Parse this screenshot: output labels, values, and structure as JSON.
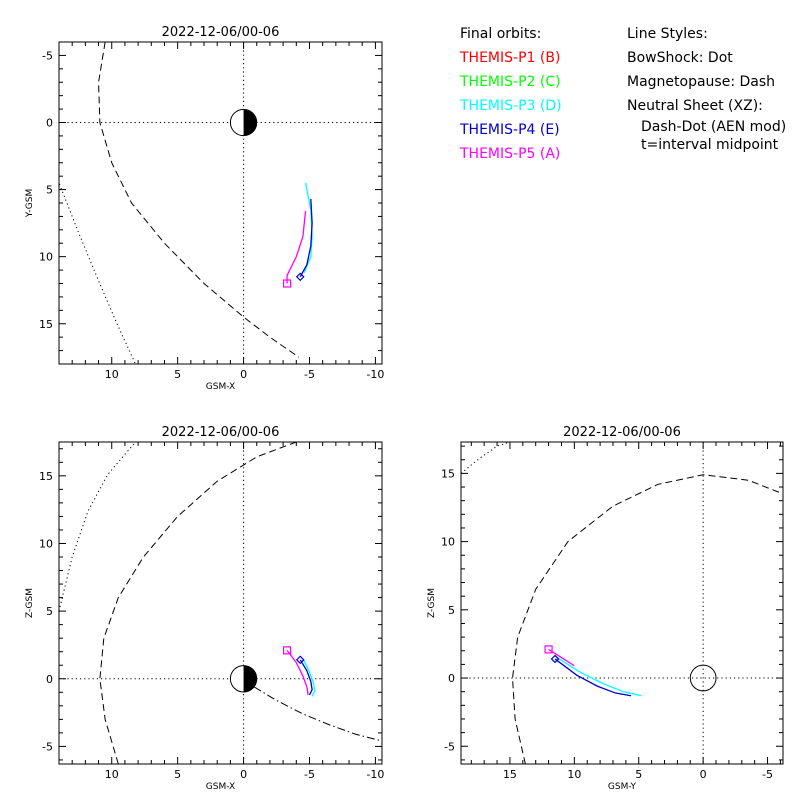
{
  "chart_data": [
    {
      "type": "line",
      "title": "2022-12-06/00-06",
      "xlabel": "GSM-X",
      "ylabel": "Y-GSM",
      "xlim": [
        14,
        -10.5
      ],
      "ylim": [
        18,
        -6
      ],
      "xticks": [
        10,
        5,
        0,
        -5,
        -10
      ],
      "xtick_labels": [
        "10",
        "5",
        "0",
        "-5",
        "-10"
      ],
      "yticks": [
        -5,
        0,
        5,
        10,
        15
      ],
      "ytick_labels": [
        "-5",
        "0",
        "5",
        "10",
        "15"
      ],
      "origin_lines": "dotted",
      "earth": "day-night",
      "boundaries": [
        {
          "style": "dot",
          "x": [
            14.2,
            12.6,
            11.0,
            9.6,
            8.2
          ],
          "y": [
            4.0,
            8.0,
            11.8,
            15.0,
            18.0
          ]
        },
        {
          "style": "dash",
          "x": [
            10.5,
            11.0,
            10.9,
            10.0,
            8.5,
            6.0,
            3.0,
            0.0,
            -2.0,
            -4.2
          ],
          "y": [
            -6.0,
            -3.0,
            0.0,
            3.0,
            6.0,
            9.0,
            12.0,
            14.5,
            16.0,
            17.5
          ]
        }
      ],
      "series": [
        {
          "name": "THEMIS-P3 (D)",
          "color": "#00ffff",
          "x": [
            -4.7,
            -5.1,
            -5.2,
            -5.1,
            -4.6
          ],
          "y": [
            4.5,
            6.5,
            8.5,
            10.0,
            11.2
          ]
        },
        {
          "name": "THEMIS-P4 (E)",
          "color": "#0000cc",
          "x": [
            -5.1,
            -5.2,
            -5.1,
            -4.8,
            -4.3
          ],
          "y": [
            5.7,
            7.5,
            9.2,
            10.6,
            11.5
          ]
        },
        {
          "name": "THEMIS-P5 (A)",
          "color": "#ff00ff",
          "x": [
            -4.7,
            -4.5,
            -4.0,
            -3.3,
            -3.3
          ],
          "y": [
            6.6,
            8.5,
            10.0,
            11.4,
            12.0
          ]
        }
      ],
      "markers": [
        {
          "color": "#ff00ff",
          "shape": "square",
          "x": -3.3,
          "y": 12.0
        },
        {
          "color": "#0000cc",
          "shape": "diamond",
          "x": -4.3,
          "y": 11.5
        }
      ]
    },
    {
      "type": "line",
      "title": "2022-12-06/00-06",
      "xlabel": "GSM-X",
      "ylabel": "Z-GSM",
      "xlim": [
        14,
        -10.5
      ],
      "ylim": [
        -6.3,
        17.5
      ],
      "xticks": [
        10,
        5,
        0,
        -5,
        -10
      ],
      "xtick_labels": [
        "10",
        "5",
        "0",
        "-5",
        "-10"
      ],
      "yticks": [
        -5,
        0,
        5,
        10,
        15
      ],
      "ytick_labels": [
        "-5",
        "0",
        "5",
        "10",
        "15"
      ],
      "origin_lines": "dotted",
      "earth": "day-night",
      "boundaries": [
        {
          "style": "dot",
          "x": [
            14.0,
            13.0,
            11.8,
            10.3,
            8.2
          ],
          "y": [
            5.0,
            9.0,
            12.4,
            15.1,
            17.5
          ]
        },
        {
          "style": "dash",
          "x": [
            9.5,
            10.5,
            10.9,
            10.6,
            9.5,
            7.6,
            5.0,
            2.0,
            -1.0,
            -4.0
          ],
          "y": [
            -6.3,
            -3.0,
            0.0,
            3.0,
            6.0,
            9.0,
            12.0,
            14.6,
            16.4,
            17.5
          ]
        },
        {
          "style": "dashdot",
          "x": [
            -0.8,
            -2.5,
            -4.5,
            -6.5,
            -8.5,
            -10.5
          ],
          "y": [
            -0.6,
            -1.6,
            -2.6,
            -3.4,
            -4.1,
            -4.6
          ]
        }
      ],
      "series": [
        {
          "name": "THEMIS-P3 (D)",
          "color": "#00ffff",
          "x": [
            -4.5,
            -5.0,
            -5.3,
            -5.4,
            -5.2
          ],
          "y": [
            1.5,
            0.5,
            -0.3,
            -0.9,
            -1.3
          ]
        },
        {
          "name": "THEMIS-P4 (E)",
          "color": "#0000cc",
          "x": [
            -4.3,
            -4.8,
            -5.1,
            -5.2,
            -5.0
          ],
          "y": [
            1.4,
            0.6,
            -0.2,
            -0.8,
            -1.2
          ]
        },
        {
          "name": "THEMIS-P5 (A)",
          "color": "#ff00ff",
          "x": [
            -3.3,
            -4.0,
            -4.5,
            -4.8,
            -4.9
          ],
          "y": [
            2.1,
            1.2,
            0.2,
            -0.6,
            -1.2
          ]
        }
      ],
      "markers": [
        {
          "color": "#ff00ff",
          "shape": "square",
          "x": -3.3,
          "y": 2.1
        },
        {
          "color": "#0000cc",
          "shape": "diamond",
          "x": -4.3,
          "y": 1.4
        }
      ]
    },
    {
      "type": "line",
      "title": "2022-12-06/00-06",
      "xlabel": "GSM-Y",
      "ylabel": "Z-GSM",
      "xlim": [
        18.8,
        -6.2
      ],
      "ylim": [
        -6.3,
        17.3
      ],
      "xticks": [
        15,
        10,
        5,
        0,
        -5
      ],
      "xtick_labels": [
        "15",
        "10",
        "5",
        "0",
        "-5"
      ],
      "yticks": [
        -5,
        0,
        5,
        10,
        15
      ],
      "ytick_labels": [
        "-5",
        "0",
        "5",
        "10",
        "15"
      ],
      "origin_lines": "dotted",
      "earth": "outline",
      "boundaries": [
        {
          "style": "dot",
          "x": [
            18.8,
            17.5,
            16.0,
            15.0
          ],
          "y": [
            15.0,
            16.0,
            17.0,
            17.3
          ]
        },
        {
          "style": "dash",
          "x": [
            13.8,
            14.6,
            14.8,
            14.4,
            13.0,
            10.5,
            7.0,
            3.5,
            0.0,
            -3.5,
            -6.2
          ],
          "y": [
            -6.3,
            -3.0,
            0.0,
            3.0,
            6.5,
            10.0,
            12.6,
            14.2,
            14.9,
            14.5,
            13.5
          ]
        }
      ],
      "series": [
        {
          "name": "THEMIS-P3 (D)",
          "color": "#00ffff",
          "x": [
            11.5,
            9.5,
            7.8,
            6.2,
            4.8
          ],
          "y": [
            1.6,
            0.4,
            -0.4,
            -1.0,
            -1.3
          ]
        },
        {
          "name": "THEMIS-P4 (E)",
          "color": "#0000cc",
          "x": [
            11.5,
            9.8,
            8.2,
            6.8,
            5.6
          ],
          "y": [
            1.4,
            0.2,
            -0.6,
            -1.1,
            -1.3
          ]
        },
        {
          "name": "THEMIS-P5 (A)",
          "color": "#ff00ff",
          "x": [
            12.0,
            11.0,
            10.0
          ],
          "y": [
            2.1,
            1.5,
            0.9
          ]
        }
      ],
      "markers": [
        {
          "color": "#ff00ff",
          "shape": "square",
          "x": 12.0,
          "y": 2.1
        },
        {
          "color": "#0000cc",
          "shape": "diamond",
          "x": 11.5,
          "y": 1.4
        }
      ]
    }
  ],
  "legend": {
    "orbits_title": "Final orbits:",
    "orbits": [
      {
        "label": "THEMIS-P1 (B)",
        "color": "#ff0000"
      },
      {
        "label": "THEMIS-P2 (C)",
        "color": "#00ff00"
      },
      {
        "label": "THEMIS-P3 (D)",
        "color": "#00ffff"
      },
      {
        "label": "THEMIS-P4 (E)",
        "color": "#0000cc"
      },
      {
        "label": "THEMIS-P5 (A)",
        "color": "#ff00ff"
      }
    ],
    "styles_title": "Line Styles:",
    "styles": [
      "BowShock: Dot",
      "Magnetopause: Dash",
      "Neutral Sheet (XZ):"
    ],
    "styles_sub": [
      "Dash-Dot (AEN mod)",
      "t=interval midpoint"
    ]
  }
}
